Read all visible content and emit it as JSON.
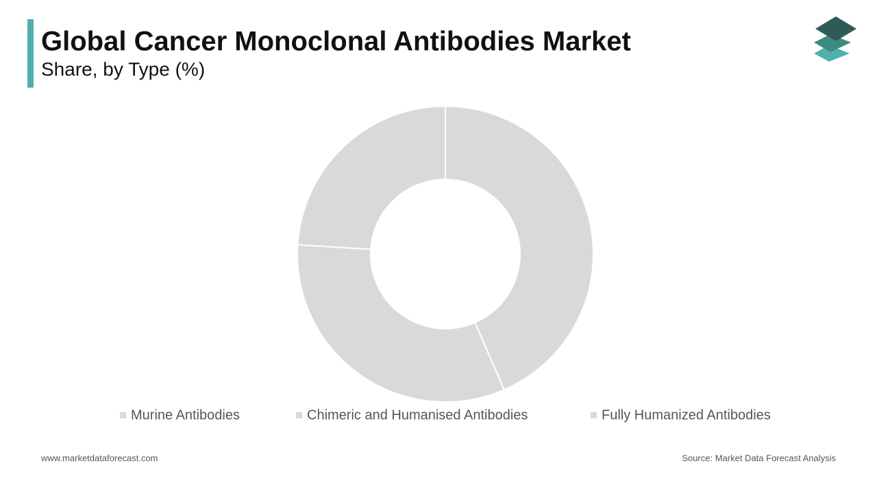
{
  "chart_data": {
    "type": "donut",
    "title": "Global Cancer Monoclonal Antibodies Market",
    "subtitle": "Share, by Type (%)",
    "categories": [
      "Murine Antibodies",
      "Chimeric and Humanised Antibodies",
      "Fully Humanized Antibodies"
    ],
    "values": [
      43.5,
      32.5,
      24
    ],
    "colors": [
      "#d9d9d9",
      "#d9d9d9",
      "#d9d9d9"
    ]
  },
  "footer": {
    "website": "www.marketdataforecast.com",
    "source": "Source: Market Data Forecast Analysis"
  }
}
